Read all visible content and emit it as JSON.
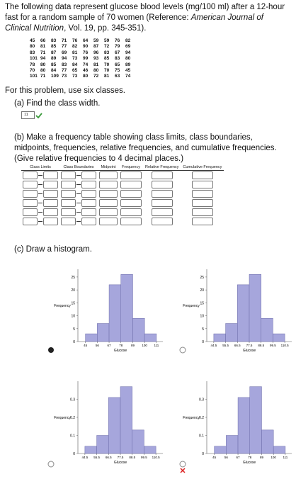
{
  "intro": {
    "text_before": "The following data represent glucose blood levels (mg/100 ml) after a 12-hour fast for a random sample of 70 women (Reference: ",
    "reference": "American Journal of Clinical Nutrition",
    "text_after": ", Vol. 19, pp. 345-351)."
  },
  "data_rows": [
    [
      45,
      66,
      83,
      71,
      76,
      64,
      59,
      59,
      76,
      82
    ],
    [
      80,
      81,
      85,
      77,
      82,
      90,
      87,
      72,
      79,
      69
    ],
    [
      83,
      71,
      87,
      69,
      81,
      76,
      96,
      83,
      67,
      94
    ],
    [
      101,
      94,
      89,
      94,
      73,
      99,
      93,
      85,
      83,
      80
    ],
    [
      78,
      80,
      85,
      83,
      84,
      74,
      81,
      70,
      65,
      89
    ],
    [
      70,
      80,
      84,
      77,
      65,
      46,
      80,
      70,
      75,
      45
    ],
    [
      101,
      71,
      109,
      73,
      73,
      80,
      72,
      81,
      63,
      74
    ]
  ],
  "instruction": "For this problem, use six classes.",
  "part_a": {
    "prompt": "(a) Find the class width.",
    "answer": 11
  },
  "part_b": {
    "prompt": "(b) Make a frequency table showing class limits, class boundaries, midpoints, frequencies, relative frequencies, and cumulative frequencies. (Give relative frequencies to 4 decimal places.)",
    "headers": [
      "Class Limits",
      "Class Boundaries",
      "Midpoint",
      "Frequency",
      "Relative Frequency",
      "Cumulative Frequency"
    ]
  },
  "part_c": {
    "prompt": "(c) Draw a histogram."
  },
  "chart_data": [
    {
      "type": "histogram",
      "ylabel": "Frequency",
      "xlabel": "Glucose",
      "bins": [
        45,
        56,
        67,
        78,
        89,
        100,
        111
      ],
      "values": [
        3,
        7,
        22,
        26,
        9,
        3
      ],
      "xlim": [
        38,
        117
      ],
      "ylim": [
        0,
        28
      ],
      "yticks": [
        0,
        5,
        10,
        15,
        20,
        25
      ],
      "color": "#a6a6dc"
    },
    {
      "type": "histogram",
      "ylabel": "Frequency",
      "xlabel": "Glucose",
      "bins": [
        44.5,
        55.5,
        66.5,
        77.5,
        88.5,
        99.5,
        110.5
      ],
      "values": [
        3,
        7,
        22,
        26,
        9,
        3
      ],
      "xlim": [
        38,
        117
      ],
      "ylim": [
        0,
        28
      ],
      "yticks": [
        0,
        5,
        10,
        15,
        20,
        25
      ],
      "color": "#a6a6dc"
    },
    {
      "type": "histogram",
      "ylabel": "Frequency",
      "xlabel": "Glucose",
      "bins": [
        44.5,
        55.5,
        66.5,
        77.5,
        88.5,
        99.5,
        110.5
      ],
      "values": [
        0.04,
        0.1,
        0.31,
        0.37,
        0.13,
        0.04
      ],
      "xlim": [
        38,
        117
      ],
      "ylim": [
        0,
        0.4
      ],
      "yticks": [
        0,
        0.1,
        0.2,
        0.3
      ],
      "color": "#a6a6dc"
    },
    {
      "type": "histogram",
      "ylabel": "Frequency",
      "xlabel": "Glucose",
      "bins": [
        45,
        56,
        67,
        78,
        89,
        100,
        111
      ],
      "values": [
        0.04,
        0.1,
        0.31,
        0.37,
        0.13,
        0.04
      ],
      "xlim": [
        38,
        117
      ],
      "ylim": [
        0,
        0.4
      ],
      "yticks": [
        0,
        0.1,
        0.2,
        0.3
      ],
      "color": "#a6a6dc"
    }
  ]
}
